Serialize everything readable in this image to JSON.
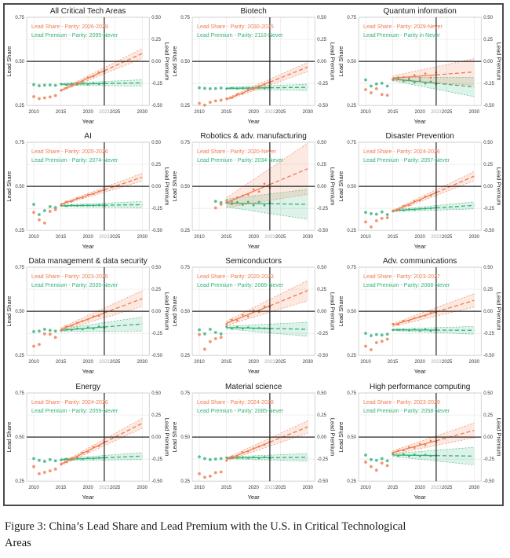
{
  "figure": {
    "caption_line1": "Figure 3: China’s Lead Share and Lead Premium with the U.S. in Critical Technological",
    "caption_line2": "Areas"
  },
  "colors": {
    "share": "#ef7b50",
    "premium": "#33b278",
    "grid": "#e7e7e7",
    "spine": "#c9c9c9",
    "axis_text": "#333333",
    "vline_label": "#a9a9a9",
    "crosshair": "#222222"
  },
  "axes": {
    "xlabel": "Year",
    "ylabel_left": "Lead Share",
    "ylabel_right": "Lead Premium",
    "x_ticks": [
      2010,
      2015,
      2020,
      2025,
      2030
    ],
    "vline_year_label": "2023",
    "vline_year": 2023,
    "hline_share": 0.5,
    "y_left_ticks": [
      "0.75",
      "0.50",
      "0.25"
    ],
    "y_left_values": [
      0.75,
      0.5,
      0.25
    ],
    "y_right_ticks": [
      "0.50",
      "0.25",
      "0.00",
      "-0.25",
      "-0.50"
    ],
    "y_right_at_share": [
      0.75,
      0.625,
      0.5,
      0.375,
      0.25
    ],
    "grid_y_values": [
      0.75,
      0.625,
      0.5,
      0.375,
      0.25
    ],
    "x_range": [
      2008.7,
      2031.3
    ],
    "y_range": [
      0.25,
      0.75
    ],
    "fit_start": 2015,
    "fit_end": 2030
  },
  "chart_data": [
    {
      "type": "scatter+line",
      "slug": "all-critical-tech-areas",
      "title": "All Critical Tech Areas",
      "share_label": "Lead Share - Parity: 2026-2029",
      "premium_label": "Lead Premium - Parity: 2095-Never",
      "share": {
        "pre": [
          [
            2010,
            0.3
          ],
          [
            2011,
            0.289
          ],
          [
            2012,
            0.293
          ],
          [
            2013,
            0.298
          ],
          [
            2014,
            0.306
          ]
        ],
        "fit": [
          0.335,
          0.545
        ],
        "ci": [
          0.006,
          0.028
        ],
        "noise": 0.004
      },
      "premium": {
        "pre": [
          [
            2010,
            0.368
          ],
          [
            2011,
            0.362
          ],
          [
            2012,
            0.365
          ],
          [
            2013,
            0.366
          ],
          [
            2014,
            0.364
          ]
        ],
        "fit": [
          0.37,
          0.378
        ],
        "ci": [
          0.005,
          0.018
        ],
        "noise": 0.003
      }
    },
    {
      "type": "scatter+line",
      "slug": "biotech",
      "title": "Biotech",
      "share_label": "Lead Share - Parity: 2030-2035",
      "premium_label": "Lead Premium - Parity: 2110-Never",
      "share": {
        "pre": [
          [
            2010,
            0.262
          ],
          [
            2011,
            0.252
          ],
          [
            2012,
            0.268
          ],
          [
            2013,
            0.276
          ],
          [
            2014,
            0.28
          ]
        ],
        "fit": [
          0.285,
          0.468
        ],
        "ci": [
          0.006,
          0.026
        ],
        "noise": 0.004
      },
      "premium": {
        "pre": [
          [
            2010,
            0.35
          ],
          [
            2011,
            0.347
          ],
          [
            2012,
            0.345
          ],
          [
            2013,
            0.346
          ],
          [
            2014,
            0.349
          ]
        ],
        "fit": [
          0.347,
          0.353
        ],
        "ci": [
          0.005,
          0.018
        ],
        "noise": 0.003
      }
    },
    {
      "type": "scatter+line",
      "slug": "quantum-information",
      "title": "Quantum information",
      "share_label": "Lead Share - Parity: 2029-Never",
      "premium_label": "Lead Premium - Parity in Never",
      "share": {
        "pre": [
          [
            2010,
            0.34
          ],
          [
            2011,
            0.322
          ],
          [
            2012,
            0.345
          ],
          [
            2013,
            0.312
          ],
          [
            2014,
            0.308
          ]
        ],
        "fit": [
          0.405,
          0.44
        ],
        "ci": [
          0.013,
          0.075
        ],
        "noise": 0.014
      },
      "premium": {
        "pre": [
          [
            2010,
            0.395
          ],
          [
            2011,
            0.36
          ],
          [
            2012,
            0.372
          ],
          [
            2013,
            0.376
          ],
          [
            2014,
            0.36
          ]
        ],
        "fit": [
          0.4,
          0.355
        ],
        "ci": [
          0.01,
          0.055
        ],
        "noise": 0.008
      }
    },
    {
      "type": "scatter+line",
      "slug": "ai",
      "title": "AI",
      "share_label": "Lead Share - Parity: 2025-2026",
      "premium_label": "Lead Premium - Parity: 2074-Never",
      "share": {
        "pre": [
          [
            2010,
            0.352
          ],
          [
            2011,
            0.31
          ],
          [
            2012,
            0.292
          ],
          [
            2013,
            0.358
          ],
          [
            2014,
            0.368
          ]
        ],
        "fit": [
          0.398,
          0.552
        ],
        "ci": [
          0.005,
          0.022
        ],
        "noise": 0.004
      },
      "premium": {
        "pre": [
          [
            2010,
            0.398
          ],
          [
            2011,
            0.34
          ],
          [
            2012,
            0.362
          ],
          [
            2013,
            0.385
          ],
          [
            2014,
            0.38
          ]
        ],
        "fit": [
          0.39,
          0.396
        ],
        "ci": [
          0.004,
          0.018
        ],
        "noise": 0.003
      }
    },
    {
      "type": "scatter+line",
      "slug": "robotics-adv-manufacturing",
      "title": "Robotics & adv. manufacturing",
      "share_label": "Lead Share - Parity: 2020-Never",
      "premium_label": "Lead Premium - Parity: 2034-Never",
      "share": {
        "pre": [
          [
            2013,
            0.378
          ],
          [
            2014,
            0.398
          ]
        ],
        "fit": [
          0.408,
          0.6
        ],
        "ci": [
          0.028,
          0.145
        ],
        "noise": 0.02
      },
      "premium": {
        "pre": [
          [
            2013,
            0.415
          ],
          [
            2014,
            0.408
          ]
        ],
        "fit": [
          0.405,
          0.398
        ],
        "ci": [
          0.022,
          0.085
        ],
        "noise": 0.01
      }
    },
    {
      "type": "scatter+line",
      "slug": "disaster-prevention",
      "title": "Disaster Prevention",
      "share_label": "Lead Share - Parity: 2024-2026",
      "premium_label": "Lead Premium - Parity: 2057-Never",
      "share": {
        "pre": [
          [
            2010,
            0.298
          ],
          [
            2011,
            0.27
          ],
          [
            2012,
            0.305
          ],
          [
            2013,
            0.318
          ],
          [
            2014,
            0.322
          ]
        ],
        "fit": [
          0.358,
          0.558
        ],
        "ci": [
          0.006,
          0.026
        ],
        "noise": 0.004
      },
      "premium": {
        "pre": [
          [
            2010,
            0.352
          ],
          [
            2011,
            0.345
          ],
          [
            2012,
            0.342
          ],
          [
            2013,
            0.355
          ],
          [
            2014,
            0.34
          ]
        ],
        "fit": [
          0.362,
          0.392
        ],
        "ci": [
          0.005,
          0.02
        ],
        "noise": 0.003
      }
    },
    {
      "type": "scatter+line",
      "slug": "data-management-data-security",
      "title": "Data management & data security",
      "share_label": "Lead Share - Parity: 2023-2025",
      "premium_label": "Lead Premium - Parity: 2035-Never",
      "share": {
        "pre": [
          [
            2010,
            0.302
          ],
          [
            2011,
            0.312
          ],
          [
            2012,
            0.372
          ],
          [
            2013,
            0.37
          ],
          [
            2014,
            0.352
          ]
        ],
        "fit": [
          0.398,
          0.572
        ],
        "ci": [
          0.008,
          0.045
        ],
        "noise": 0.007
      },
      "premium": {
        "pre": [
          [
            2010,
            0.385
          ],
          [
            2011,
            0.388
          ],
          [
            2012,
            0.398
          ],
          [
            2013,
            0.392
          ],
          [
            2014,
            0.388
          ]
        ],
        "fit": [
          0.392,
          0.428
        ],
        "ci": [
          0.007,
          0.04
        ],
        "noise": 0.005
      }
    },
    {
      "type": "scatter+line",
      "slug": "semiconductors",
      "title": "Semiconductors",
      "share_label": "Lead Share - Parity: 2020-2023",
      "premium_label": "Lead Premium - Parity: 2066-Never",
      "share": {
        "pre": [
          [
            2010,
            0.368
          ],
          [
            2011,
            0.285
          ],
          [
            2012,
            0.328
          ],
          [
            2013,
            0.345
          ],
          [
            2014,
            0.352
          ]
        ],
        "fit": [
          0.432,
          0.618
        ],
        "ci": [
          0.012,
          0.058
        ],
        "noise": 0.011
      },
      "premium": {
        "pre": [
          [
            2010,
            0.395
          ],
          [
            2011,
            0.372
          ],
          [
            2012,
            0.398
          ],
          [
            2013,
            0.38
          ],
          [
            2014,
            0.372
          ]
        ],
        "fit": [
          0.408,
          0.398
        ],
        "ci": [
          0.008,
          0.04
        ],
        "noise": 0.005
      }
    },
    {
      "type": "scatter+line",
      "slug": "adv-communications",
      "title": "Adv. communications",
      "share_label": "Lead Share - Parity: 2023-2027",
      "premium_label": "Lead Premium - Parity: 2066-Never",
      "share": {
        "pre": [
          [
            2010,
            0.302
          ],
          [
            2011,
            0.282
          ],
          [
            2012,
            0.322
          ],
          [
            2013,
            0.33
          ],
          [
            2014,
            0.342
          ]
        ],
        "fit": [
          0.422,
          0.562
        ],
        "ci": [
          0.008,
          0.038
        ],
        "noise": 0.007
      },
      "premium": {
        "pre": [
          [
            2010,
            0.375
          ],
          [
            2011,
            0.362
          ],
          [
            2012,
            0.368
          ],
          [
            2013,
            0.365
          ],
          [
            2014,
            0.37
          ]
        ],
        "fit": [
          0.395,
          0.392
        ],
        "ci": [
          0.005,
          0.022
        ],
        "noise": 0.004
      }
    },
    {
      "type": "scatter+line",
      "slug": "energy",
      "title": "Energy",
      "share_label": "Lead Share - Parity: 2024-2026",
      "premium_label": "Lead Premium - Parity: 2059-Never",
      "share": {
        "pre": [
          [
            2010,
            0.332
          ],
          [
            2011,
            0.292
          ],
          [
            2012,
            0.3
          ],
          [
            2013,
            0.308
          ],
          [
            2014,
            0.318
          ]
        ],
        "fit": [
          0.345,
          0.578
        ],
        "ci": [
          0.007,
          0.028
        ],
        "noise": 0.005
      },
      "premium": {
        "pre": [
          [
            2010,
            0.378
          ],
          [
            2011,
            0.368
          ],
          [
            2012,
            0.362
          ],
          [
            2013,
            0.372
          ],
          [
            2014,
            0.365
          ]
        ],
        "fit": [
          0.372,
          0.392
        ],
        "ci": [
          0.005,
          0.02
        ],
        "noise": 0.003
      }
    },
    {
      "type": "scatter+line",
      "slug": "material-science",
      "title": "Material science",
      "share_label": "Lead Share - Parity: 2024-2028",
      "premium_label": "Lead Premium - Parity: 2085-Never",
      "share": {
        "pre": [
          [
            2010,
            0.292
          ],
          [
            2011,
            0.272
          ],
          [
            2012,
            0.278
          ],
          [
            2013,
            0.298
          ],
          [
            2014,
            0.302
          ]
        ],
        "fit": [
          0.372,
          0.558
        ],
        "ci": [
          0.008,
          0.035
        ],
        "noise": 0.006
      },
      "premium": {
        "pre": [
          [
            2010,
            0.388
          ],
          [
            2011,
            0.378
          ],
          [
            2012,
            0.372
          ],
          [
            2013,
            0.375
          ],
          [
            2014,
            0.378
          ]
        ],
        "fit": [
          0.382,
          0.385
        ],
        "ci": [
          0.005,
          0.022
        ],
        "noise": 0.003
      }
    },
    {
      "type": "scatter+line",
      "slug": "high-performance-computing",
      "title": "High performance computing",
      "share_label": "Lead Share - Parity: 2023-2029",
      "premium_label": "Lead Premium - Parity: 2058-Never",
      "share": {
        "pre": [
          [
            2010,
            0.358
          ],
          [
            2011,
            0.332
          ],
          [
            2012,
            0.312
          ],
          [
            2013,
            0.352
          ],
          [
            2014,
            0.338
          ]
        ],
        "fit": [
          0.412,
          0.538
        ],
        "ci": [
          0.01,
          0.042
        ],
        "noise": 0.008
      },
      "premium": {
        "pre": [
          [
            2010,
            0.398
          ],
          [
            2011,
            0.372
          ],
          [
            2012,
            0.368
          ],
          [
            2013,
            0.378
          ],
          [
            2014,
            0.365
          ]
        ],
        "fit": [
          0.398,
          0.392
        ],
        "ci": [
          0.008,
          0.05
        ],
        "noise": 0.005
      }
    }
  ]
}
